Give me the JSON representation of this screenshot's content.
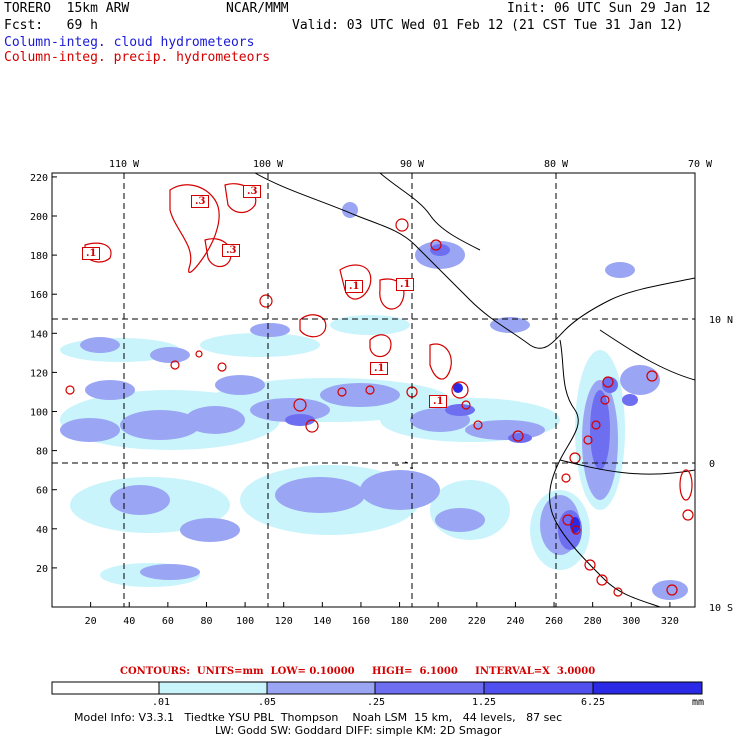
{
  "header": {
    "model": "TORERO  15km ARW",
    "org": "NCAR/MMM",
    "init": "Init: 06 UTC Sun 29 Jan 12",
    "fcst": "Fcst:   69 h",
    "valid": "Valid: 03 UTC Wed 01 Feb 12 (21 CST Tue 31 Jan 12)",
    "field_blue": "Column-integ. cloud hydrometeors",
    "field_red": "Column-integ. precip. hydrometeors"
  },
  "colors": {
    "cloud_light": "#c9f4fb",
    "cloud_mid": "#9aa6f4",
    "cloud_dark": "#6d6ef0",
    "cloud_darker": "#5050ee",
    "cloud_darkest": "#2a2ae6",
    "contour": "#d40000",
    "coast": "#000000"
  },
  "axes": {
    "lon_labels": [
      "110 W",
      "100 W",
      "90 W",
      "80 W",
      "70 W"
    ],
    "lat_labels": [
      "10 N",
      "0",
      "10 S"
    ],
    "y_ticks": [
      "220",
      "200",
      "180",
      "160",
      "140",
      "120",
      "100",
      "80",
      "60",
      "40",
      "20"
    ],
    "x_ticks": [
      "20",
      "40",
      "60",
      "80",
      "100",
      "120",
      "140",
      "160",
      "180",
      "200",
      "220",
      "240",
      "260",
      "280",
      "300",
      "320"
    ]
  },
  "contour_labels": [
    ".3",
    ".3",
    ".3",
    ".1",
    ".1",
    ".1",
    ".1",
    ".1"
  ],
  "contours_info": {
    "label": "CONTOURS:  UNITS=mm  LOW= 0.10000     HIGH=  6.1000     INTERVAL=X  3.0000"
  },
  "colorbar": {
    "labels": [
      ".01",
      ".05",
      ".25",
      "1.25",
      "6.25"
    ],
    "units": "mm"
  },
  "footer": {
    "line1": "Model Info: V3.3.1   Tiedtke YSU PBL  Thompson    Noah LSM  15 km,   44 levels,   87 sec",
    "line2": "LW: Godd SW: Goddard DIFF: simple KM: 2D Smagor"
  }
}
